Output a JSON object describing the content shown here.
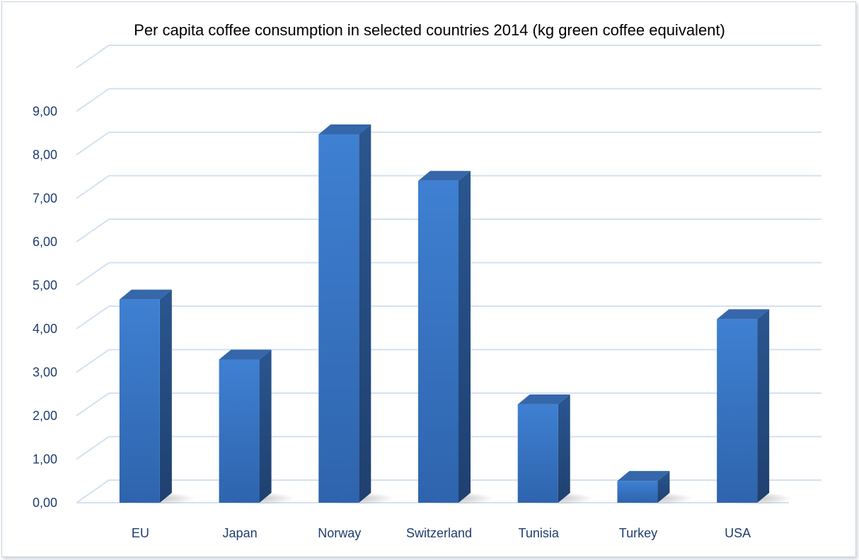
{
  "chart_data": {
    "type": "bar",
    "title": "Per capita coffee consumption in selected countries 2014 (kg green coffee equivalent)",
    "xlabel": "",
    "ylabel": "",
    "categories": [
      "EU",
      "Japan",
      "Norway",
      "Switzerland",
      "Tunisia",
      "Turkey",
      "USA"
    ],
    "values": [
      4.9,
      3.52,
      8.7,
      7.63,
      2.49,
      0.73,
      4.45
    ],
    "ylim": [
      0,
      10
    ],
    "y_ticks": [
      "0,00",
      "1,00",
      "2,00",
      "3,00",
      "4,00",
      "5,00",
      "6,00",
      "7,00",
      "8,00",
      "9,00"
    ],
    "grid": true,
    "legend": "none",
    "style": "3d-column",
    "colors": {
      "bar_front": "#3a78c8",
      "bar_side": "#27518a",
      "bar_top": "#3567aa",
      "gridline": "#d4e1f1",
      "tick_text": "#1f3d70"
    }
  }
}
